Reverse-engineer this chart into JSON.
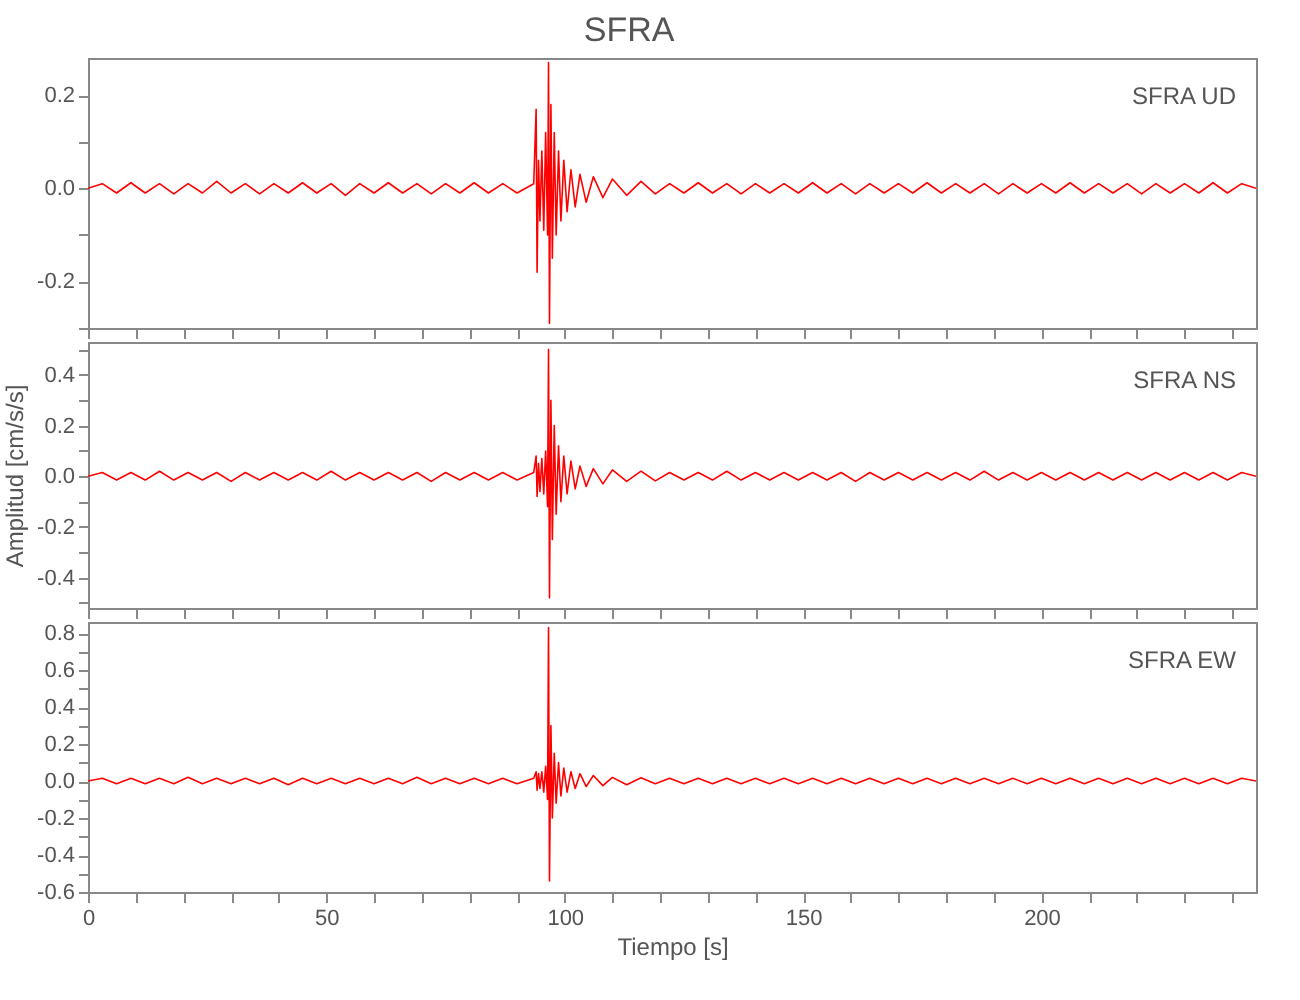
{
  "chart_data": [
    {
      "type": "line",
      "title": "SFRA",
      "annotations": [
        "SFRA UD"
      ],
      "color": "#ff0000",
      "tick_labels": "y",
      "x": [
        0,
        3,
        6,
        9,
        12,
        15,
        18,
        21,
        24,
        27,
        30,
        33,
        36,
        39,
        42,
        45,
        48,
        51,
        54,
        57,
        60,
        63,
        66,
        69,
        72,
        75,
        78,
        81,
        84,
        87,
        90,
        93.5,
        94,
        94.2,
        94.5,
        94.8,
        95.2,
        95.6,
        96,
        96.4,
        96.6,
        96.8,
        97.1,
        97.4,
        97.8,
        98.2,
        98.7,
        99.2,
        99.8,
        100.5,
        101.3,
        102.2,
        103.2,
        104.5,
        106,
        108,
        110,
        113,
        116,
        119,
        122,
        125,
        128,
        131,
        134,
        137,
        140,
        143,
        146,
        149,
        152,
        155,
        158,
        161,
        164,
        167,
        170,
        173,
        176,
        179,
        182,
        185,
        188,
        191,
        194,
        197,
        200,
        203,
        206,
        209,
        212,
        215,
        218,
        221,
        224,
        227,
        230,
        233,
        236,
        239,
        242,
        245
      ],
      "values": [
        0,
        0.01,
        -0.01,
        0.012,
        -0.01,
        0.01,
        -0.012,
        0.01,
        -0.01,
        0.015,
        -0.01,
        0.01,
        -0.012,
        0.01,
        -0.01,
        0.012,
        -0.01,
        0.01,
        -0.015,
        0.01,
        -0.01,
        0.012,
        -0.01,
        0.01,
        -0.012,
        0.01,
        -0.01,
        0.012,
        -0.01,
        0.01,
        -0.01,
        0.01,
        0.17,
        -0.18,
        0.06,
        -0.07,
        0.08,
        -0.09,
        0.12,
        -0.1,
        0.27,
        -0.29,
        0.18,
        -0.15,
        0.12,
        -0.1,
        0.08,
        -0.07,
        0.06,
        -0.05,
        0.04,
        -0.04,
        0.03,
        -0.03,
        0.025,
        -0.02,
        0.02,
        -0.015,
        0.015,
        -0.012,
        0.01,
        -0.01,
        0.012,
        -0.01,
        0.01,
        -0.012,
        0.01,
        -0.01,
        0.01,
        -0.01,
        0.012,
        -0.01,
        0.01,
        -0.012,
        0.01,
        -0.01,
        0.01,
        -0.01,
        0.012,
        -0.01,
        0.01,
        -0.01,
        0.01,
        -0.012,
        0.01,
        -0.01,
        0.01,
        -0.01,
        0.012,
        -0.01,
        0.01,
        -0.01,
        0.01,
        -0.012,
        0.01,
        -0.01,
        0.01,
        -0.01,
        0.012,
        -0.01,
        0.01,
        0
      ],
      "xlim": [
        0,
        245
      ],
      "xticks": [
        0,
        {
          "value": 10,
          "label": null
        },
        {
          "value": 20,
          "label": null
        },
        {
          "value": 30,
          "label": null
        },
        {
          "value": 40,
          "label": null
        },
        50,
        {
          "value": 60,
          "label": null
        },
        {
          "value": 70,
          "label": null
        },
        {
          "value": 80,
          "label": null
        },
        {
          "value": 90,
          "label": null
        },
        100,
        {
          "value": 110,
          "label": null
        },
        {
          "value": 120,
          "label": null
        },
        {
          "value": 130,
          "label": null
        },
        {
          "value": 140,
          "label": null
        },
        150,
        {
          "value": 160,
          "label": null
        },
        {
          "value": 170,
          "label": null
        },
        {
          "value": 180,
          "label": null
        },
        {
          "value": 190,
          "label": null
        },
        200,
        {
          "value": 210,
          "label": null
        },
        {
          "value": 220,
          "label": null
        },
        {
          "value": 230,
          "label": null
        },
        {
          "value": 240,
          "label": null
        }
      ],
      "ylim": [
        -0.3,
        0.28
      ],
      "yticks": [
        {
          "value": -0.3,
          "label": null
        },
        -0.2,
        {
          "value": -0.1,
          "label": null
        },
        {
          "value": 0,
          "label": "0.0"
        },
        {
          "value": 0.1,
          "label": null
        },
        0.2
      ]
    },
    {
      "type": "line",
      "ylabel": "Amplitud [cm/s/s]",
      "annotations": [
        "SFRA NS"
      ],
      "color": "#ff0000",
      "tick_labels": "y",
      "x": [
        0,
        3,
        6,
        9,
        12,
        15,
        18,
        21,
        24,
        27,
        30,
        33,
        36,
        39,
        42,
        45,
        48,
        51,
        54,
        57,
        60,
        63,
        66,
        69,
        72,
        75,
        78,
        81,
        84,
        87,
        90,
        93.5,
        94,
        94.2,
        94.5,
        94.8,
        95.2,
        95.6,
        96,
        96.4,
        96.6,
        96.8,
        97.1,
        97.4,
        97.8,
        98.2,
        98.7,
        99.2,
        99.8,
        100.5,
        101.3,
        102.2,
        103.2,
        104.5,
        106,
        108,
        110,
        113,
        116,
        119,
        122,
        125,
        128,
        131,
        134,
        137,
        140,
        143,
        146,
        149,
        152,
        155,
        158,
        161,
        164,
        167,
        170,
        173,
        176,
        179,
        182,
        185,
        188,
        191,
        194,
        197,
        200,
        203,
        206,
        209,
        212,
        215,
        218,
        221,
        224,
        227,
        230,
        233,
        236,
        239,
        242,
        245
      ],
      "values": [
        0,
        0.015,
        -0.015,
        0.015,
        -0.015,
        0.02,
        -0.015,
        0.015,
        -0.015,
        0.015,
        -0.02,
        0.015,
        -0.015,
        0.015,
        -0.015,
        0.015,
        -0.015,
        0.02,
        -0.015,
        0.015,
        -0.015,
        0.015,
        -0.015,
        0.015,
        -0.02,
        0.015,
        -0.015,
        0.015,
        -0.015,
        0.015,
        -0.015,
        0.015,
        0.08,
        -0.08,
        0.05,
        -0.06,
        0.07,
        -0.07,
        0.1,
        -0.12,
        0.5,
        -0.48,
        0.3,
        -0.25,
        0.2,
        -0.15,
        0.12,
        -0.1,
        0.08,
        -0.07,
        0.06,
        -0.05,
        0.04,
        -0.04,
        0.03,
        -0.03,
        0.025,
        -0.02,
        0.02,
        -0.018,
        0.015,
        -0.015,
        0.015,
        -0.015,
        0.02,
        -0.015,
        0.015,
        -0.015,
        0.015,
        -0.015,
        0.015,
        -0.015,
        0.015,
        -0.02,
        0.015,
        -0.015,
        0.015,
        -0.015,
        0.015,
        -0.015,
        0.015,
        -0.015,
        0.02,
        -0.015,
        0.015,
        -0.015,
        0.015,
        -0.015,
        0.015,
        -0.015,
        0.015,
        -0.015,
        0.015,
        -0.015,
        0.015,
        -0.015,
        0.015,
        -0.015,
        0.015,
        -0.015,
        0.015,
        0
      ],
      "xlim": [
        0,
        245
      ],
      "xticks": [
        0,
        {
          "value": 10,
          "label": null
        },
        {
          "value": 20,
          "label": null
        },
        {
          "value": 30,
          "label": null
        },
        {
          "value": 40,
          "label": null
        },
        50,
        {
          "value": 60,
          "label": null
        },
        {
          "value": 70,
          "label": null
        },
        {
          "value": 80,
          "label": null
        },
        {
          "value": 90,
          "label": null
        },
        100,
        {
          "value": 110,
          "label": null
        },
        {
          "value": 120,
          "label": null
        },
        {
          "value": 130,
          "label": null
        },
        {
          "value": 140,
          "label": null
        },
        150,
        {
          "value": 160,
          "label": null
        },
        {
          "value": 170,
          "label": null
        },
        {
          "value": 180,
          "label": null
        },
        {
          "value": 190,
          "label": null
        },
        200,
        {
          "value": 210,
          "label": null
        },
        {
          "value": 220,
          "label": null
        },
        {
          "value": 230,
          "label": null
        },
        {
          "value": 240,
          "label": null
        }
      ],
      "ylim": [
        -0.52,
        0.53
      ],
      "yticks": [
        {
          "value": -0.5,
          "label": null
        },
        -0.4,
        {
          "value": -0.3,
          "label": null
        },
        -0.2,
        {
          "value": -0.1,
          "label": null
        },
        {
          "value": 0,
          "label": "0.0"
        },
        {
          "value": 0.1,
          "label": null
        },
        0.2,
        {
          "value": 0.3,
          "label": null
        },
        0.4,
        {
          "value": 0.5,
          "label": null
        }
      ]
    },
    {
      "type": "line",
      "xlabel": "Tiempo [s]",
      "annotations": [
        "SFRA EW"
      ],
      "color": "#ff0000",
      "x": [
        0,
        3,
        6,
        9,
        12,
        15,
        18,
        21,
        24,
        27,
        30,
        33,
        36,
        39,
        42,
        45,
        48,
        51,
        54,
        57,
        60,
        63,
        66,
        69,
        72,
        75,
        78,
        81,
        84,
        87,
        90,
        93.5,
        94,
        94.2,
        94.5,
        94.8,
        95.2,
        95.6,
        96,
        96.4,
        96.6,
        96.8,
        97.1,
        97.4,
        97.8,
        98.2,
        98.7,
        99.2,
        99.8,
        100.5,
        101.3,
        102.2,
        103.2,
        104.5,
        106,
        108,
        110,
        113,
        116,
        119,
        122,
        125,
        128,
        131,
        134,
        137,
        140,
        143,
        146,
        149,
        152,
        155,
        158,
        161,
        164,
        167,
        170,
        173,
        176,
        179,
        182,
        185,
        188,
        191,
        194,
        197,
        200,
        203,
        206,
        209,
        212,
        215,
        218,
        221,
        224,
        227,
        230,
        233,
        236,
        239,
        242,
        245
      ],
      "values": [
        0,
        0.015,
        -0.015,
        0.015,
        -0.015,
        0.015,
        -0.015,
        0.02,
        -0.015,
        0.015,
        -0.015,
        0.015,
        -0.015,
        0.015,
        -0.02,
        0.015,
        -0.015,
        0.015,
        -0.015,
        0.015,
        -0.015,
        0.015,
        -0.015,
        0.02,
        -0.015,
        0.015,
        -0.015,
        0.015,
        -0.015,
        0.015,
        -0.015,
        0.015,
        0.05,
        -0.05,
        0.04,
        -0.04,
        0.05,
        -0.06,
        0.08,
        -0.1,
        0.83,
        -0.54,
        0.3,
        -0.2,
        0.15,
        -0.12,
        0.1,
        -0.08,
        0.07,
        -0.06,
        0.05,
        -0.04,
        0.04,
        -0.03,
        0.03,
        -0.025,
        0.02,
        -0.02,
        0.018,
        -0.015,
        0.015,
        -0.015,
        0.015,
        -0.015,
        0.015,
        -0.015,
        0.015,
        -0.015,
        0.015,
        -0.015,
        0.015,
        -0.015,
        0.015,
        -0.015,
        0.015,
        -0.015,
        0.015,
        -0.015,
        0.015,
        -0.015,
        0.015,
        -0.015,
        0.015,
        -0.015,
        0.015,
        -0.015,
        0.015,
        -0.015,
        0.015,
        -0.015,
        0.015,
        -0.015,
        0.015,
        -0.015,
        0.015,
        -0.015,
        0.015,
        -0.015,
        0.015,
        -0.015,
        0.015,
        0
      ],
      "xlim": [
        0,
        245
      ],
      "xticks": [
        0,
        {
          "value": 10,
          "label": null
        },
        {
          "value": 20,
          "label": null
        },
        {
          "value": 30,
          "label": null
        },
        {
          "value": 40,
          "label": null
        },
        50,
        {
          "value": 60,
          "label": null
        },
        {
          "value": 70,
          "label": null
        },
        {
          "value": 80,
          "label": null
        },
        {
          "value": 90,
          "label": null
        },
        100,
        {
          "value": 110,
          "label": null
        },
        {
          "value": 120,
          "label": null
        },
        {
          "value": 130,
          "label": null
        },
        {
          "value": 140,
          "label": null
        },
        150,
        {
          "value": 160,
          "label": null
        },
        {
          "value": 170,
          "label": null
        },
        {
          "value": 180,
          "label": null
        },
        {
          "value": 190,
          "label": null
        },
        200,
        {
          "value": 210,
          "label": null
        },
        {
          "value": 220,
          "label": null
        },
        {
          "value": 230,
          "label": null
        },
        {
          "value": 240,
          "label": null
        }
      ],
      "ylim": [
        -0.6,
        0.86
      ],
      "yticks": [
        -0.6,
        {
          "value": -0.5,
          "label": null
        },
        -0.4,
        {
          "value": -0.3,
          "label": null
        },
        -0.2,
        {
          "value": -0.1,
          "label": null
        },
        {
          "value": 0,
          "label": "0.0"
        },
        {
          "value": 0.1,
          "label": null
        },
        0.2,
        {
          "value": 0.3,
          "label": null
        },
        0.4,
        {
          "value": 0.5,
          "label": null
        },
        0.6,
        {
          "value": 0.7,
          "label": null
        },
        0.8
      ]
    }
  ]
}
